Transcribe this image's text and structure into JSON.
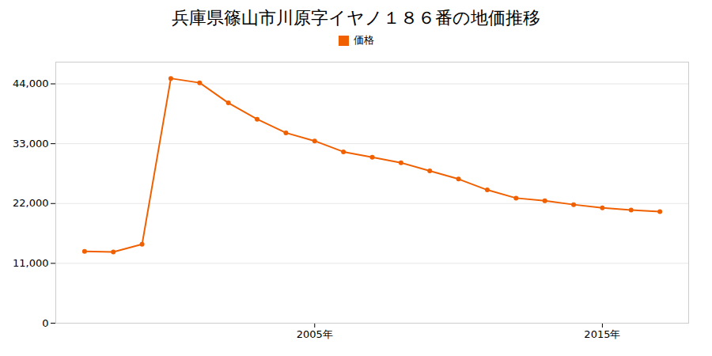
{
  "chart_data": {
    "type": "line",
    "title": "兵庫県篠山市川原字イヤノ１８６番の地価推移",
    "x": [
      1997,
      1998,
      1999,
      2000,
      2001,
      2002,
      2003,
      2004,
      2005,
      2006,
      2007,
      2008,
      2009,
      2010,
      2011,
      2012,
      2013,
      2014,
      2015,
      2016,
      2017
    ],
    "series": [
      {
        "name": "価格",
        "color": "#f06000",
        "marker": "circle",
        "values": [
          13200,
          13100,
          14500,
          45000,
          44200,
          40500,
          37500,
          35000,
          33500,
          31500,
          30500,
          29500,
          28000,
          26500,
          24500,
          23000,
          22500,
          21800,
          21200,
          20800,
          20500
        ]
      }
    ],
    "xlim": [
      1996,
      2018
    ],
    "xticks": [
      {
        "value": 2005,
        "label": "2005年"
      },
      {
        "value": 2015,
        "label": "2015年"
      }
    ],
    "ylim": [
      0,
      48000
    ],
    "yticks": [
      0,
      {
        "value": 11000,
        "label": "11,000"
      },
      {
        "value": 22000,
        "label": "22,000"
      },
      {
        "value": 33000,
        "label": "33,000"
      },
      {
        "value": 44000,
        "label": "44,000"
      }
    ],
    "grid": true,
    "legend": "top"
  }
}
